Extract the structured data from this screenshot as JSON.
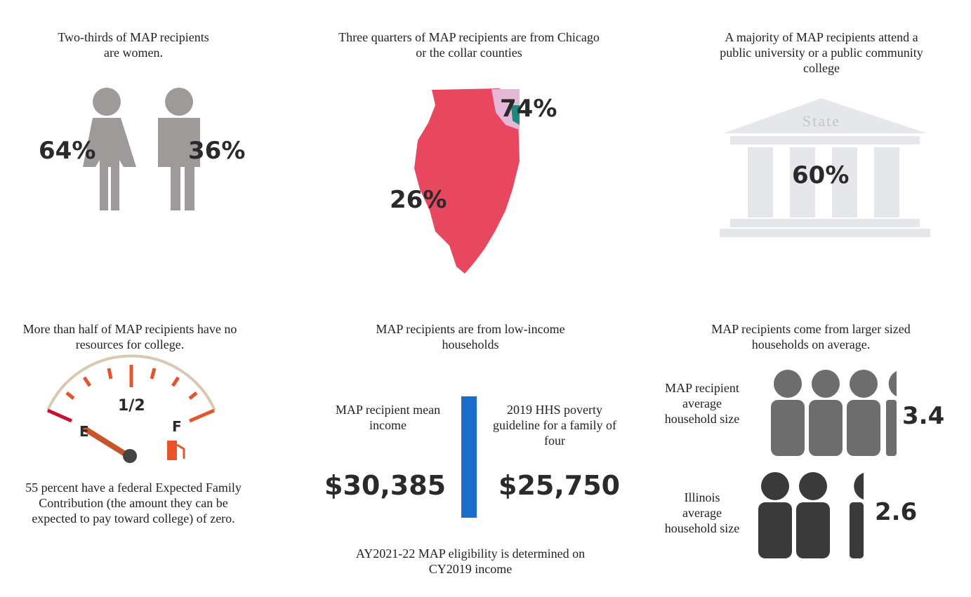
{
  "panels": [
    {
      "caption": "Two-thirds of MAP recipients are women.",
      "women": "64%",
      "men": "36%"
    },
    {
      "caption": "Three quarters of MAP recipients are from Chicago or the collar counties",
      "chicago": "74%",
      "rest": "26%"
    },
    {
      "caption": "A majority of MAP recipients attend a public university or a public community college",
      "building": "State",
      "share": "60%"
    },
    {
      "caption": "More than half of MAP recipients have no resources for college.",
      "gauge": {
        "empty": "E",
        "half": "1/2",
        "full": "F"
      },
      "note": "55 percent have a federal Expected Family Contribution (the amount they can be expected to pay toward college) of zero."
    },
    {
      "caption": "MAP recipients are from low-income households",
      "left": {
        "label": "MAP recipient mean income",
        "value": "$30,385"
      },
      "right": {
        "label": "2019 HHS poverty guideline for a family of four",
        "value": "$25,750"
      },
      "footnote": "AY2021-22 MAP eligibility is determined on CY2019 income"
    },
    {
      "caption": "MAP recipients come from larger sized households on average.",
      "rows": [
        {
          "label": "MAP recipient average household size",
          "value": "3.4"
        },
        {
          "label": "Illinois average household size",
          "value": "2.6"
        }
      ]
    }
  ]
}
